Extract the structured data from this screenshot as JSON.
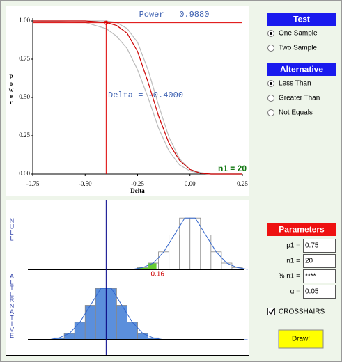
{
  "chart_data": [
    {
      "type": "line",
      "x_label": "Delta",
      "y_label": "Power",
      "annotations": [
        "Power = 0.9880",
        "Delta = -0.4000",
        "n1 = 20"
      ],
      "crosshair": {
        "x": -0.4,
        "y": 0.988,
        "color": "#dd0000"
      },
      "x": [
        -0.75,
        -0.5,
        -0.4,
        -0.35,
        -0.3,
        -0.25,
        -0.2,
        -0.15,
        -0.1,
        -0.05,
        0,
        0.05,
        0.1,
        0.15,
        0.2,
        0.25
      ],
      "series": [
        {
          "color": "#bbbbbb",
          "values": [
            1.0,
            0.99,
            0.95,
            0.9,
            0.82,
            0.68,
            0.5,
            0.3,
            0.15,
            0.06,
            0.02,
            0.005,
            0,
            0,
            0,
            0
          ]
        },
        {
          "color": "#bbbbbb",
          "values": [
            1.0,
            1.0,
            1.0,
            0.99,
            0.95,
            0.86,
            0.68,
            0.45,
            0.24,
            0.1,
            0.03,
            0.01,
            0,
            0,
            0,
            0
          ]
        },
        {
          "color": "#cc0000",
          "values": [
            1.0,
            1.0,
            0.99,
            0.97,
            0.92,
            0.8,
            0.6,
            0.38,
            0.2,
            0.09,
            0.03,
            0.005,
            0,
            0,
            0,
            0
          ]
        }
      ],
      "xlim": [
        -0.75,
        0.25
      ],
      "xticks": [
        {
          "value": -0.75,
          "label": "-0.75"
        },
        {
          "value": -0.5,
          "label": "-0.50"
        },
        {
          "value": -0.25,
          "label": "-0.25"
        },
        {
          "value": 0,
          "label": "0.00"
        },
        {
          "value": 0.25,
          "label": "0.25"
        }
      ],
      "ylim": [
        0,
        1
      ],
      "yticks": [
        {
          "value": 0,
          "label": "0.00"
        },
        {
          "value": 0.25,
          "label": "0.25"
        },
        {
          "value": 0.5,
          "label": "0.50"
        },
        {
          "value": 0.75,
          "label": "0.75"
        },
        {
          "value": 1,
          "label": "1.00"
        }
      ]
    },
    {
      "type": "histogram",
      "bins": [
        -0.75,
        -0.7,
        -0.65,
        -0.6,
        -0.55,
        -0.5,
        -0.45,
        -0.4,
        -0.35,
        -0.3,
        -0.25,
        -0.2,
        -0.15,
        -0.1,
        -0.05,
        0,
        0.05,
        0.1,
        0.15,
        0.2,
        0.25,
        0.3
      ],
      "series": [
        {
          "name": "NULL",
          "color": "#ffffff",
          "values": [
            0,
            0,
            0,
            0,
            0,
            0,
            0,
            0,
            0,
            0,
            3,
            10,
            28,
            55,
            82,
            82,
            55,
            28,
            10,
            3,
            0
          ]
        },
        {
          "name": "ALTERNATIVE",
          "color": "#5b8fdc",
          "values": [
            0,
            0,
            3,
            10,
            28,
            55,
            82,
            82,
            55,
            28,
            10,
            3,
            0,
            0,
            0,
            0,
            0,
            0,
            0,
            0,
            0
          ]
        }
      ],
      "critical": {
        "value": -0.16,
        "label": "-0.16"
      },
      "tail_color": "#66cc33",
      "curve_color": "#3366cc",
      "crosshair_x": -0.4,
      "xlim": [
        -0.75,
        0.25
      ],
      "ylim": [
        0,
        100
      ]
    }
  ],
  "controls": {
    "test": {
      "title": "Test",
      "options": [
        "One Sample",
        "Two Sample"
      ],
      "selected": 0
    },
    "alternative": {
      "title": "Alternative",
      "options": [
        "Less Than",
        "Greater Than",
        "Not Equals"
      ],
      "selected": 0
    },
    "parameters": {
      "title": "Parameters",
      "fields": [
        {
          "label": "p1 =",
          "value": "0.75"
        },
        {
          "label": "n1 =",
          "value": "20"
        },
        {
          "label": "% n1 =",
          "value": "****"
        },
        {
          "label": "α =",
          "value": "0.05"
        }
      ]
    },
    "crosshairs": {
      "label": "CROSSHAIRS",
      "checked": true
    },
    "button": "Draw!"
  }
}
